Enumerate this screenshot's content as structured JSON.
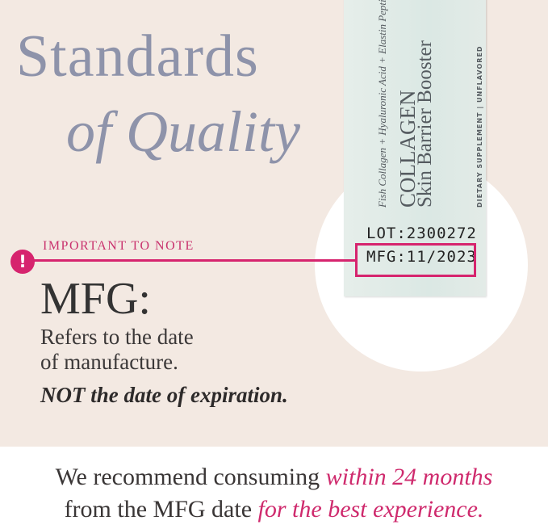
{
  "heading": {
    "line1": "Standards",
    "line2": "of Quality"
  },
  "packet": {
    "ingredients": "Fish Collagen + Hyaluronic Acid + Elastin Peptides",
    "brand": "COLLAGEN",
    "product": "Skin Barrier Booster",
    "type": "DIETARY SUPPLEMENT | UNFLAVORED",
    "lot": "LOT:2300272",
    "mfg": "MFG:11/2023"
  },
  "note": {
    "icon": "exclamation-icon",
    "label": "IMPORTANT TO NOTE",
    "term": "MFG:",
    "desc1": "Refers to the date",
    "desc2": "of manufacture.",
    "emphasis": "NOT the date of expiration."
  },
  "footer": {
    "p1": "We recommend consuming ",
    "h1": "within 24 months",
    "p2": "from the MFG date ",
    "h2": "for the best experience."
  },
  "colors": {
    "accent": "#d6246e",
    "heading": "#8e93aa",
    "background": "#f3e9e2"
  }
}
